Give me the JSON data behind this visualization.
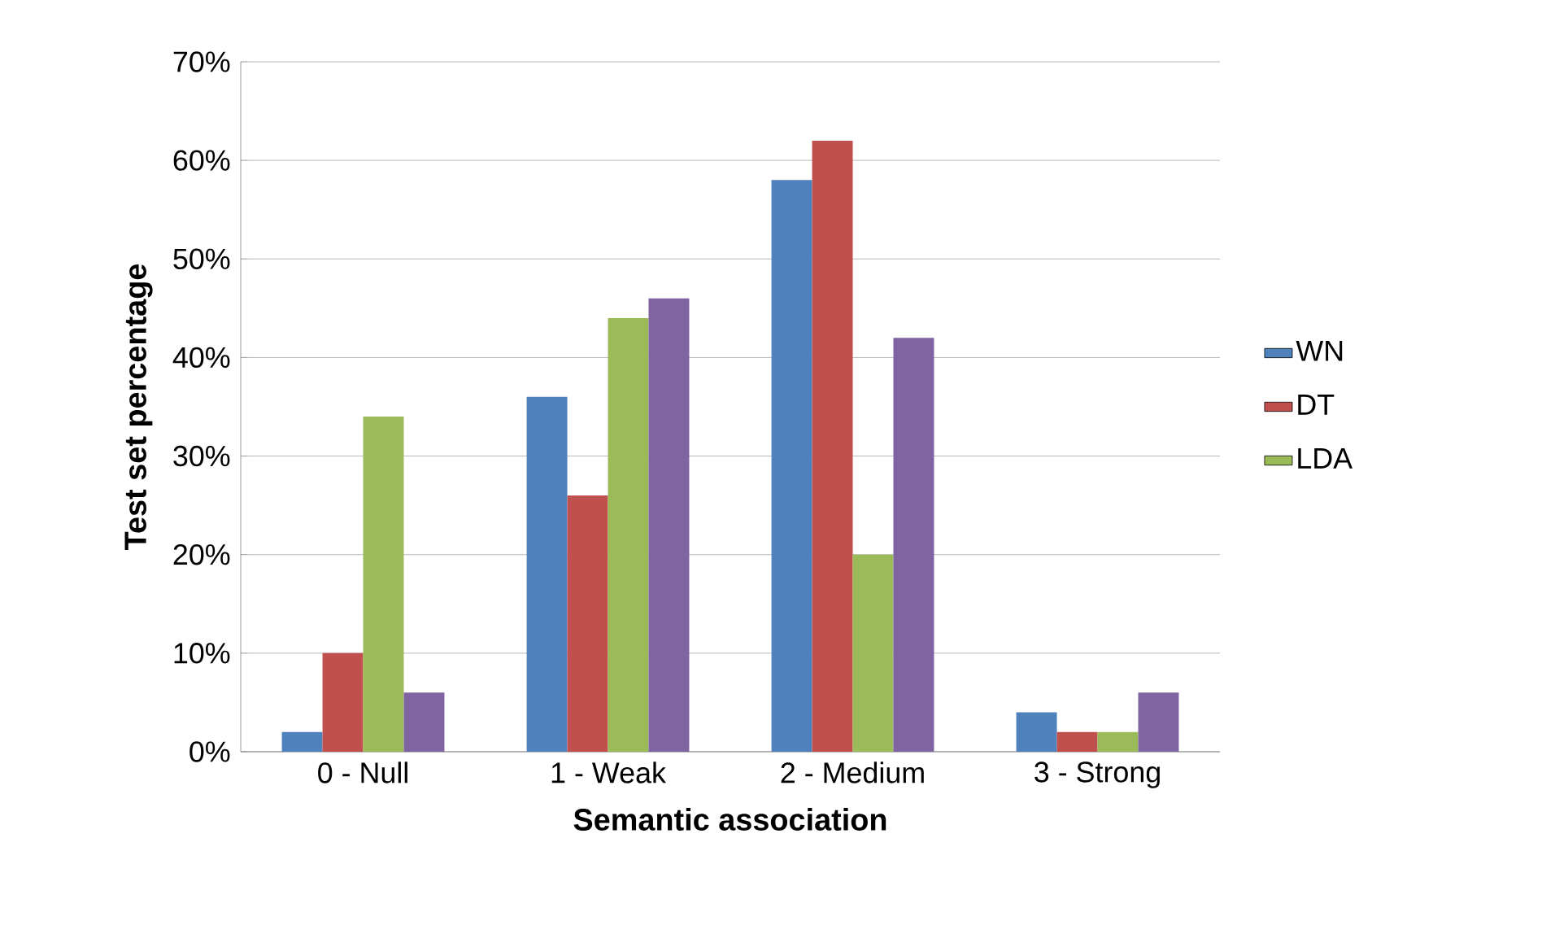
{
  "chart_data": {
    "type": "bar",
    "xlabel": "Semantic association",
    "ylabel": "Test set percentage",
    "categories": [
      "0 - Null",
      "1 - Weak",
      "2 - Medium",
      "3 - Strong"
    ],
    "series": [
      {
        "name": "WN",
        "color": "#4f81bd",
        "values": [
          2,
          36,
          58,
          4
        ]
      },
      {
        "name": "DT",
        "color": "#c0504d",
        "values": [
          10,
          26,
          62,
          2
        ]
      },
      {
        "name": "LDA",
        "color": "#9bbb59",
        "values": [
          34,
          44,
          20,
          2
        ]
      },
      {
        "color": "#8064a2",
        "values": [
          6,
          46,
          42,
          6
        ]
      }
    ],
    "ylim": [
      0,
      70
    ],
    "yticks": [
      {
        "value": 0,
        "label": "0%"
      },
      {
        "value": 10,
        "label": "10%"
      },
      {
        "value": 20,
        "label": "20%"
      },
      {
        "value": 30,
        "label": "30%"
      },
      {
        "value": 40,
        "label": "40%"
      },
      {
        "value": 50,
        "label": "50%"
      },
      {
        "value": 60,
        "label": "60%"
      },
      {
        "value": 70,
        "label": "70%"
      }
    ],
    "grid": "y",
    "legend": "right"
  }
}
